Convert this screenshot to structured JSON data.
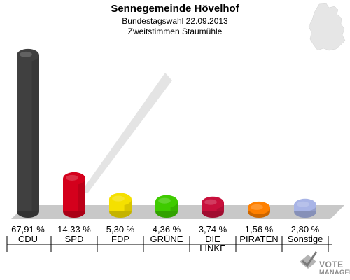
{
  "header": {
    "title": "Sennegemeinde Hövelhof",
    "subtitle": "Bundestagswahl 22.09.2013",
    "subtitle2": "Zweitstimmen Staumühle"
  },
  "logo": {
    "line1": "VOTE",
    "line2": "MANAGER"
  },
  "chart_data": {
    "type": "bar",
    "title": "Sennegemeinde Hövelhof",
    "subtitle": "Bundestagswahl 22.09.2013 / Zweitstimmen Staumühle",
    "categories": [
      "CDU",
      "SPD",
      "FDP",
      "GRÜNE",
      "DIE LINKE",
      "PIRATEN",
      "Sonstige"
    ],
    "category_lines": [
      [
        "CDU"
      ],
      [
        "SPD"
      ],
      [
        "FDP"
      ],
      [
        "GRÜNE"
      ],
      [
        "DIE",
        "LINKE"
      ],
      [
        "PIRATEN"
      ],
      [
        "Sonstige"
      ]
    ],
    "values": [
      67.91,
      14.33,
      5.3,
      4.36,
      3.74,
      1.56,
      2.8
    ],
    "value_labels": [
      "67,91 %",
      "14,33 %",
      "5,30 %",
      "4,36 %",
      "3,74 %",
      "1,56 %",
      "2,80 %"
    ],
    "colors": [
      "#404040",
      "#d4001c",
      "#f5e000",
      "#3fcb00",
      "#c8103c",
      "#ff8000",
      "#a8b4e6"
    ],
    "ylim": [
      0,
      70
    ],
    "unit": "%",
    "grid": false,
    "legend": "none"
  }
}
